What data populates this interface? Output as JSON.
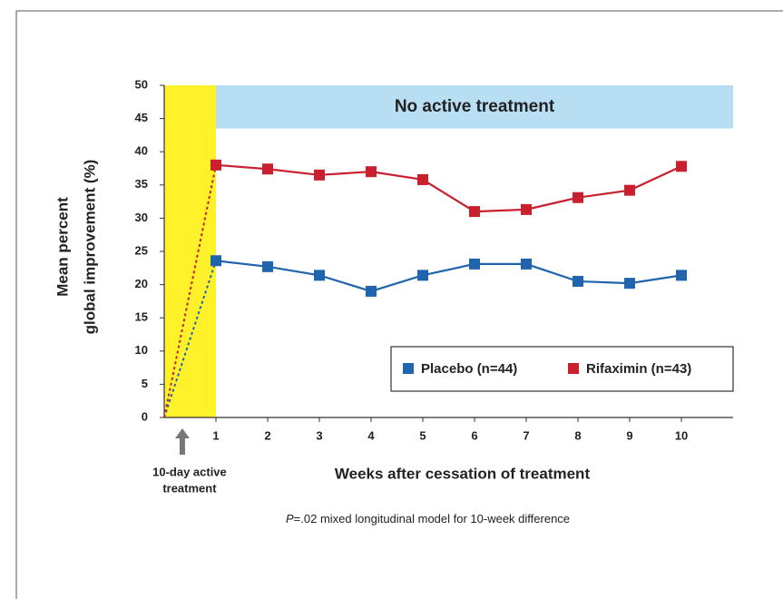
{
  "chart_data": {
    "type": "line",
    "ylabel": [
      "Mean percent",
      "global improvement (%)"
    ],
    "xlabel": "Weeks after cessation of treatment",
    "x": [
      0,
      1,
      2,
      3,
      4,
      5,
      6,
      7,
      8,
      9,
      10
    ],
    "series": [
      {
        "name": "Placebo (n=44)",
        "color": "#1f64ad",
        "values": [
          0,
          23.6,
          22.7,
          21.4,
          19.0,
          21.4,
          23.1,
          23.1,
          20.5,
          20.2,
          21.4
        ]
      },
      {
        "name": "Rifaximin (n=43)",
        "color": "#c8202f",
        "values": [
          0,
          38.0,
          37.4,
          36.5,
          37.0,
          35.8,
          31.0,
          31.3,
          33.1,
          34.2,
          37.8
        ]
      }
    ],
    "xlim": [
      0,
      11
    ],
    "ylim": [
      0,
      50
    ],
    "xticks": [
      1,
      2,
      3,
      4,
      5,
      6,
      7,
      8,
      9,
      10
    ],
    "yticks": [
      0,
      5,
      10,
      15,
      20,
      25,
      30,
      35,
      40,
      45,
      50
    ],
    "regions": [
      {
        "x": [
          0,
          1
        ],
        "y": [
          0,
          50
        ],
        "color": "#fff22a"
      },
      {
        "x": [
          1,
          11
        ],
        "y": [
          43.5,
          50
        ],
        "color": "#b8def4",
        "label": "No active treatment"
      }
    ],
    "annotation": {
      "x": 0.35,
      "text": [
        "10-day active",
        "treatment"
      ]
    },
    "footnote": {
      "italic": "P",
      "text": "=.02 mixed longitudinal model for 10-week difference"
    }
  }
}
